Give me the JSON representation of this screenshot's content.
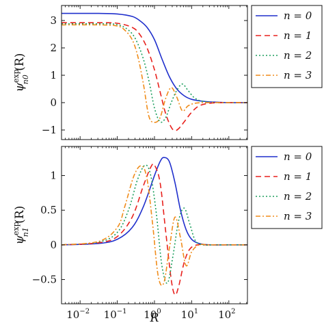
{
  "chart_data": [
    {
      "type": "line",
      "id": "top",
      "ylabel": "ψ",
      "ylabel_sup": "exp",
      "ylabel_sub": "n0",
      "ylabel_arg": "(R)",
      "xscale": "log",
      "xlim_exp": [
        -2.5,
        2.5
      ],
      "ylim": [
        -1.35,
        3.55
      ],
      "yticks": [
        -1,
        0,
        1,
        2,
        3
      ],
      "legend": "outside-right",
      "series": [
        {
          "name": "n = 0",
          "color": "#1f2fcc",
          "dash": "solid",
          "x_exp": [
            -2.5,
            -1.5,
            -1,
            -0.6,
            -0.4,
            -0.2,
            0,
            0.2,
            0.4,
            0.6,
            0.8,
            1.0,
            1.3,
            1.6,
            2.0,
            2.5
          ],
          "y": [
            3.26,
            3.26,
            3.24,
            3.15,
            3.0,
            2.75,
            2.3,
            1.6,
            0.95,
            0.5,
            0.25,
            0.12,
            0.05,
            0.02,
            0.0,
            0.0
          ]
        },
        {
          "name": "n = 1",
          "color": "#e8211d",
          "dash": "8,5",
          "x_exp": [
            -2.5,
            -1.5,
            -1,
            -0.6,
            -0.4,
            -0.2,
            0,
            0.15,
            0.3,
            0.45,
            0.55,
            0.65,
            0.8,
            1.0,
            1.2,
            1.5,
            2.0,
            2.5
          ],
          "y": [
            2.92,
            2.92,
            2.9,
            2.75,
            2.5,
            2.0,
            1.2,
            0.4,
            -0.4,
            -0.9,
            -1.02,
            -0.95,
            -0.7,
            -0.35,
            -0.12,
            -0.02,
            0.0,
            0.0
          ]
        },
        {
          "name": "n = 2",
          "color": "#1a9e5c",
          "dash": "2,3",
          "x_exp": [
            -2.5,
            -1.5,
            -1,
            -0.7,
            -0.5,
            -0.3,
            -0.15,
            0,
            0.15,
            0.3,
            0.45,
            0.6,
            0.75,
            0.9,
            1.1,
            1.4,
            2.0,
            2.5
          ],
          "y": [
            2.88,
            2.88,
            2.85,
            2.65,
            2.3,
            1.6,
            0.8,
            -0.2,
            -0.7,
            -0.55,
            0.0,
            0.45,
            0.68,
            0.45,
            0.15,
            0.03,
            0.0,
            0.0
          ]
        },
        {
          "name": "n = 3",
          "color": "#f08c1a",
          "dash": "7,3,2,3",
          "x_exp": [
            -2.5,
            -1.5,
            -1,
            -0.8,
            -0.6,
            -0.45,
            -0.3,
            -0.15,
            0,
            0.15,
            0.3,
            0.45,
            0.6,
            0.75,
            0.9,
            1.1,
            1.4,
            2.0,
            2.5
          ],
          "y": [
            2.84,
            2.84,
            2.8,
            2.65,
            2.3,
            1.7,
            0.7,
            -0.5,
            -0.72,
            -0.55,
            0.15,
            0.55,
            0.2,
            -0.3,
            -0.12,
            -0.02,
            0.0,
            0.0,
            0.0
          ]
        }
      ]
    },
    {
      "type": "line",
      "id": "bottom",
      "ylabel": "ψ",
      "ylabel_sup": "exp",
      "ylabel_sub": "n1",
      "ylabel_arg": "(R)",
      "xlabel": "R",
      "xscale": "log",
      "xlim_exp": [
        -2.5,
        2.5
      ],
      "xticks_exp": [
        -2,
        -1,
        0,
        1,
        2
      ],
      "ylim": [
        -0.85,
        1.42
      ],
      "yticks": [
        -0.5,
        0,
        0.5,
        1
      ],
      "legend": "outside-right",
      "series": [
        {
          "name": "n = 0",
          "color": "#1f2fcc",
          "dash": "solid",
          "x_exp": [
            -2.5,
            -1.5,
            -1.0,
            -0.6,
            -0.3,
            0,
            0.15,
            0.25,
            0.4,
            0.55,
            0.7,
            0.85,
            1.0,
            1.2,
            1.5,
            2.0,
            2.5
          ],
          "y": [
            0.0,
            0.02,
            0.08,
            0.25,
            0.55,
            1.0,
            1.2,
            1.26,
            1.2,
            0.9,
            0.5,
            0.22,
            0.08,
            0.02,
            0.0,
            0.0,
            0.0
          ]
        },
        {
          "name": "n = 1",
          "color": "#e8211d",
          "dash": "8,5",
          "x_exp": [
            -2.5,
            -1.5,
            -1.0,
            -0.6,
            -0.3,
            -0.1,
            0,
            0.15,
            0.3,
            0.45,
            0.55,
            0.65,
            0.8,
            0.95,
            1.15,
            1.4,
            2.0,
            2.5
          ],
          "y": [
            0.0,
            0.03,
            0.12,
            0.4,
            0.85,
            1.12,
            1.15,
            0.9,
            0.2,
            -0.5,
            -0.72,
            -0.6,
            -0.25,
            -0.06,
            0.0,
            0.0,
            0.0,
            0.0
          ]
        },
        {
          "name": "n = 2",
          "color": "#1a9e5c",
          "dash": "2,3",
          "x_exp": [
            -2.5,
            -1.5,
            -1.0,
            -0.7,
            -0.45,
            -0.25,
            -0.1,
            0.05,
            0.2,
            0.35,
            0.5,
            0.65,
            0.8,
            0.95,
            1.1,
            1.3,
            1.6,
            2.0,
            2.5
          ],
          "y": [
            0.0,
            0.04,
            0.18,
            0.5,
            0.95,
            1.15,
            1.0,
            0.45,
            -0.3,
            -0.55,
            -0.15,
            0.35,
            0.53,
            0.3,
            0.06,
            0.0,
            0.0,
            0.0,
            0.0
          ]
        },
        {
          "name": "n = 3",
          "color": "#f08c1a",
          "dash": "7,3,2,3",
          "x_exp": [
            -2.5,
            -1.5,
            -1.0,
            -0.8,
            -0.55,
            -0.35,
            -0.2,
            -0.05,
            0.1,
            0.25,
            0.4,
            0.55,
            0.7,
            0.85,
            1.0,
            1.2,
            1.5,
            2.0,
            2.5
          ],
          "y": [
            0.0,
            0.05,
            0.25,
            0.55,
            1.0,
            1.14,
            0.95,
            0.3,
            -0.45,
            -0.55,
            -0.05,
            0.4,
            0.1,
            -0.3,
            -0.1,
            0.0,
            0.0,
            0.0,
            0.0
          ]
        }
      ]
    }
  ]
}
